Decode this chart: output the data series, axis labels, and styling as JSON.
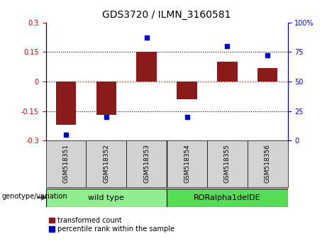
{
  "title": "GDS3720 / ILMN_3160581",
  "categories": [
    "GSM518351",
    "GSM518352",
    "GSM518353",
    "GSM518354",
    "GSM518355",
    "GSM518356"
  ],
  "red_bars": [
    -0.22,
    -0.17,
    0.15,
    -0.09,
    0.1,
    0.07
  ],
  "blue_dots_pct": [
    5,
    20,
    87,
    20,
    80,
    72
  ],
  "ylim_left": [
    -0.3,
    0.3
  ],
  "ylim_right": [
    0,
    100
  ],
  "yticks_left": [
    -0.3,
    -0.15,
    0,
    0.15,
    0.3
  ],
  "yticks_right": [
    0,
    25,
    50,
    75,
    100
  ],
  "bar_color": "#8B1A1A",
  "dot_color": "#0000CD",
  "bar_width": 0.5,
  "genotype_groups": [
    {
      "label": "wild type",
      "spans": [
        0,
        1,
        2
      ],
      "color": "#90EE90"
    },
    {
      "label": "RORalpha1delDE",
      "spans": [
        3,
        4,
        5
      ],
      "color": "#55DD55"
    }
  ],
  "genotype_label": "genotype/variation",
  "legend_red": "transformed count",
  "legend_blue": "percentile rank within the sample",
  "left_ytick_color": "#CC0000",
  "right_ytick_color": "#0000CC",
  "tick_fontsize": 7,
  "title_fontsize": 10
}
